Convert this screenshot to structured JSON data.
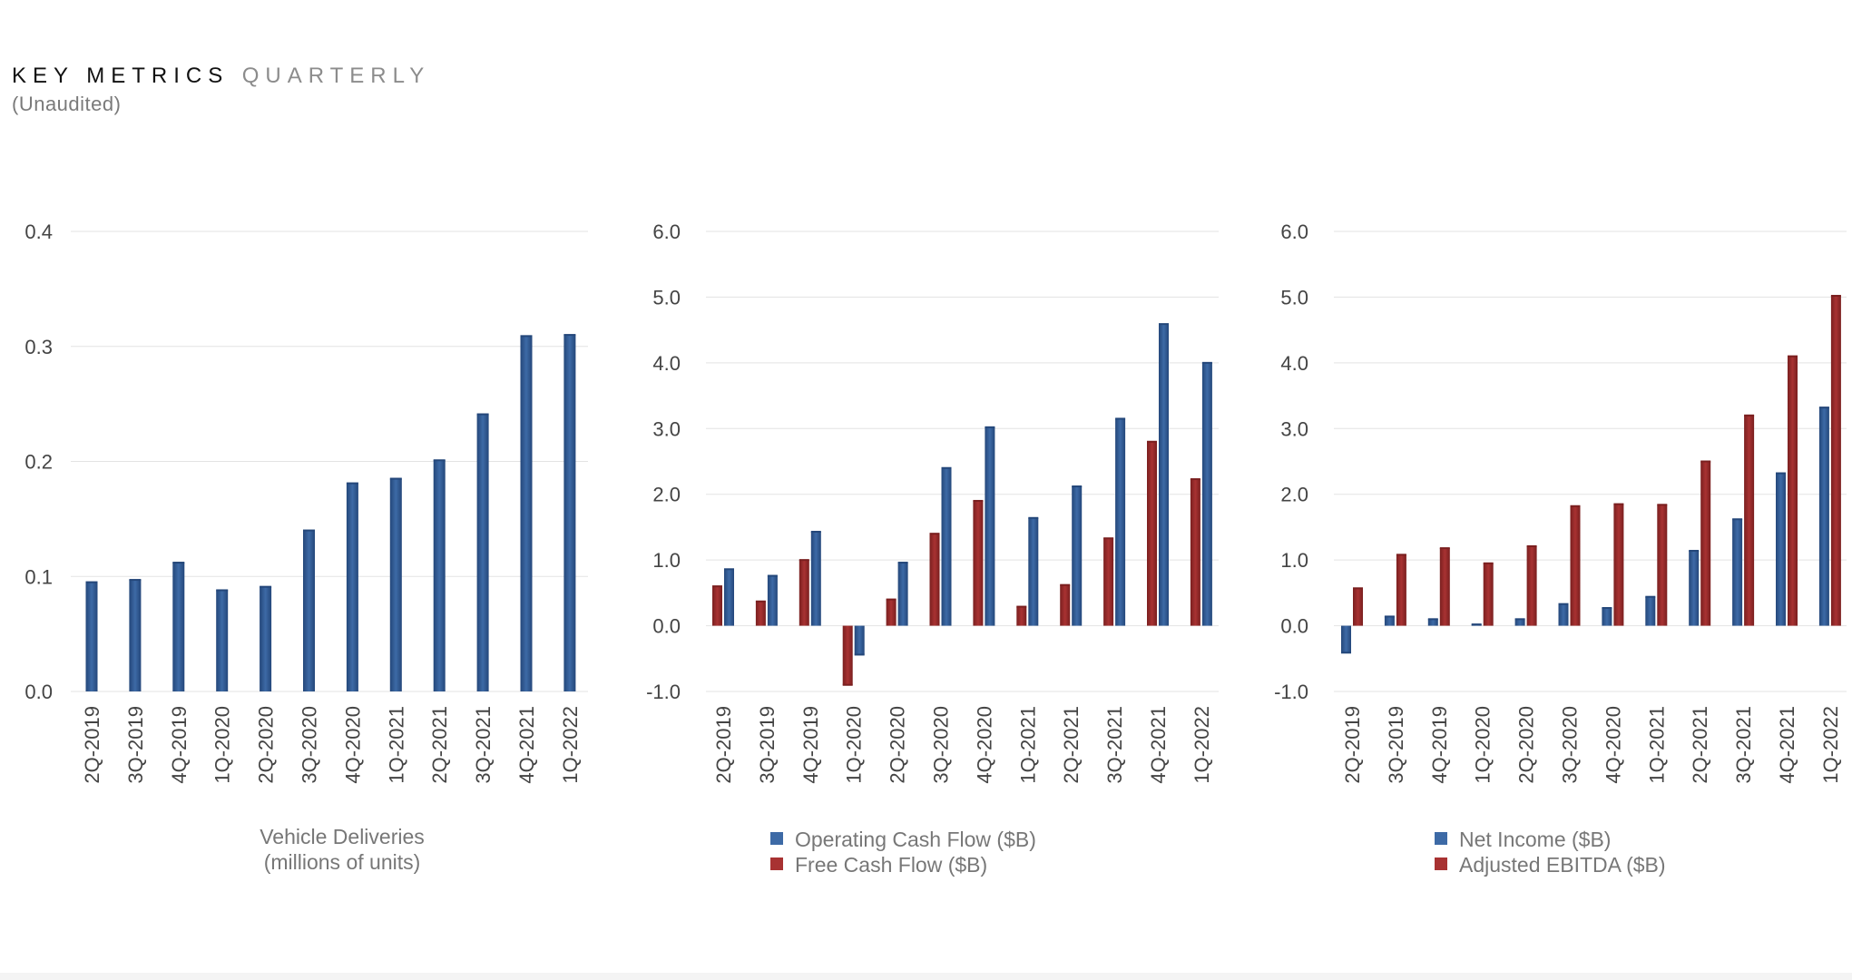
{
  "header": {
    "title": "KEY METRICS",
    "subtitle": "QUARTERLY",
    "note": "(Unaudited)"
  },
  "colors": {
    "blue": "#3d6aa6",
    "blue_dark": "#24477a",
    "red": "#a83232",
    "red_dark": "#7a1f1f",
    "grid": "#e3e3e3",
    "axis_text": "#444444",
    "legend_text": "#777777"
  },
  "chart_data": [
    {
      "type": "bar",
      "categories": [
        "2Q-2019",
        "3Q-2019",
        "4Q-2019",
        "1Q-2020",
        "2Q-2020",
        "3Q-2020",
        "4Q-2020",
        "1Q-2021",
        "2Q-2021",
        "3Q-2021",
        "4Q-2021",
        "1Q-2022"
      ],
      "series": [
        {
          "values": [
            0.095,
            0.097,
            0.112,
            0.088,
            0.091,
            0.14,
            0.181,
            0.185,
            0.201,
            0.241,
            0.309,
            0.31
          ]
        }
      ],
      "yticks": [
        "0.0",
        "0.1",
        "0.2",
        "0.3",
        "0.4"
      ],
      "ylim": [
        0,
        0.4
      ],
      "legend_lines": [
        "Vehicle Deliveries",
        "(millions of units)"
      ],
      "grid": true
    },
    {
      "type": "bar",
      "categories": [
        "2Q-2019",
        "3Q-2019",
        "4Q-2019",
        "1Q-2020",
        "2Q-2020",
        "3Q-2020",
        "4Q-2020",
        "1Q-2021",
        "2Q-2021",
        "3Q-2021",
        "4Q-2021",
        "1Q-2022"
      ],
      "series": [
        {
          "name": "Free Cash Flow ($B)",
          "values": [
            0.6,
            0.37,
            1.0,
            -0.9,
            0.4,
            1.4,
            1.9,
            0.29,
            0.62,
            1.33,
            2.8,
            2.23
          ]
        },
        {
          "name": "Operating Cash Flow ($B)",
          "values": [
            0.86,
            0.76,
            1.43,
            -0.44,
            0.96,
            2.4,
            3.02,
            1.64,
            2.12,
            3.15,
            4.59,
            4.0
          ]
        }
      ],
      "yticks": [
        "-1.0",
        "0.0",
        "1.0",
        "2.0",
        "3.0",
        "4.0",
        "5.0",
        "6.0"
      ],
      "ylim": [
        -1,
        6
      ],
      "legend": [
        "Operating Cash Flow ($B)",
        "Free Cash Flow ($B)"
      ],
      "grid": true
    },
    {
      "type": "bar",
      "categories": [
        "2Q-2019",
        "3Q-2019",
        "4Q-2019",
        "1Q-2020",
        "2Q-2020",
        "3Q-2020",
        "4Q-2020",
        "1Q-2021",
        "2Q-2021",
        "3Q-2021",
        "4Q-2021",
        "1Q-2022"
      ],
      "series": [
        {
          "name": "Net Income ($B)",
          "values": [
            -0.41,
            0.14,
            0.1,
            0.02,
            0.1,
            0.33,
            0.27,
            0.44,
            1.14,
            1.62,
            2.32,
            3.32
          ]
        },
        {
          "name": "Adjusted EBITDA ($B)",
          "values": [
            0.57,
            1.08,
            1.18,
            0.95,
            1.21,
            1.82,
            1.85,
            1.84,
            2.5,
            3.2,
            4.1,
            5.02
          ]
        }
      ],
      "yticks": [
        "-1.0",
        "0.0",
        "1.0",
        "2.0",
        "3.0",
        "4.0",
        "5.0",
        "6.0"
      ],
      "ylim": [
        -1,
        6
      ],
      "legend": [
        "Net Income ($B)",
        "Adjusted EBITDA ($B)"
      ],
      "grid": true
    }
  ]
}
